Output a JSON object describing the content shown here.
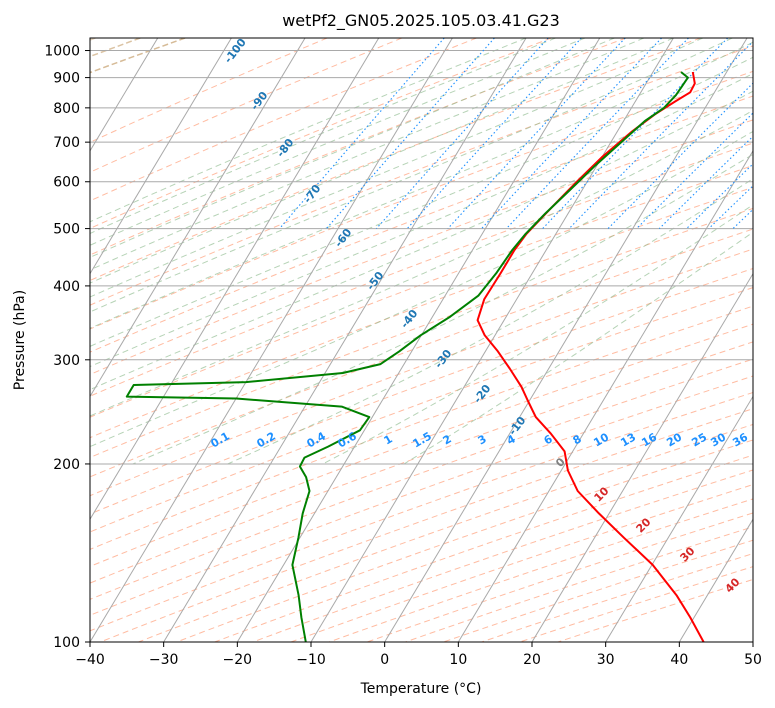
{
  "chart_data": {
    "type": "line",
    "title": "wetPf2_GN05.2025.105.03.41.G23",
    "xlabel": "Temperature (°C)",
    "ylabel": "Pressure (hPa)",
    "xlim": [
      -40,
      50
    ],
    "ylim": [
      1050,
      100
    ],
    "y_scale": "log",
    "grid": true,
    "x_ticks": [
      -40,
      -30,
      -20,
      -10,
      0,
      10,
      20,
      30,
      40,
      50
    ],
    "y_ticks": [
      100,
      200,
      300,
      400,
      500,
      600,
      700,
      800,
      900,
      1000
    ],
    "series": [
      {
        "id": "temperature",
        "color": "#ff0000",
        "points": [
          {
            "p": 920,
            "t": -4.6
          },
          {
            "p": 880,
            "t": -3.4
          },
          {
            "p": 850,
            "t": -3.3
          },
          {
            "p": 820,
            "t": -4.6
          },
          {
            "p": 780,
            "t": -6.3
          },
          {
            "p": 730,
            "t": -8.0
          },
          {
            "p": 660,
            "t": -10.0
          },
          {
            "p": 600,
            "t": -11.4
          },
          {
            "p": 540,
            "t": -12.8
          },
          {
            "p": 490,
            "t": -14.0
          },
          {
            "p": 460,
            "t": -14.3
          },
          {
            "p": 420,
            "t": -14.3
          },
          {
            "p": 380,
            "t": -14.4
          },
          {
            "p": 350,
            "t": -13.6
          },
          {
            "p": 330,
            "t": -11.4
          },
          {
            "p": 310,
            "t": -8.3
          },
          {
            "p": 290,
            "t": -5.3
          },
          {
            "p": 270,
            "t": -2.2
          },
          {
            "p": 255,
            "t": -0.1
          },
          {
            "p": 240,
            "t": 2.2
          },
          {
            "p": 225,
            "t": 5.6
          },
          {
            "p": 210,
            "t": 8.9
          },
          {
            "p": 195,
            "t": 10.9
          },
          {
            "p": 180,
            "t": 13.9
          },
          {
            "p": 165,
            "t": 18.6
          },
          {
            "p": 150,
            "t": 24.0
          },
          {
            "p": 135,
            "t": 30.1
          },
          {
            "p": 120,
            "t": 35.8
          },
          {
            "p": 110,
            "t": 39.5
          },
          {
            "p": 100,
            "t": 43.3
          }
        ]
      },
      {
        "id": "dewpoint",
        "color": "#008000",
        "points": [
          {
            "p": 920,
            "t": -6.2
          },
          {
            "p": 900,
            "t": -4.8
          },
          {
            "p": 870,
            "t": -4.9
          },
          {
            "p": 840,
            "t": -5.0
          },
          {
            "p": 800,
            "t": -5.6
          },
          {
            "p": 760,
            "t": -7.1
          },
          {
            "p": 700,
            "t": -8.6
          },
          {
            "p": 640,
            "t": -10.2
          },
          {
            "p": 580,
            "t": -11.7
          },
          {
            "p": 530,
            "t": -13.1
          },
          {
            "p": 490,
            "t": -14.1
          },
          {
            "p": 460,
            "t": -14.6
          },
          {
            "p": 420,
            "t": -14.9
          },
          {
            "p": 385,
            "t": -15.5
          },
          {
            "p": 355,
            "t": -17.6
          },
          {
            "p": 330,
            "t": -20.1
          },
          {
            "p": 310,
            "t": -21.7
          },
          {
            "p": 295,
            "t": -23.2
          },
          {
            "p": 285,
            "t": -27.6
          },
          {
            "p": 275,
            "t": -40.0
          },
          {
            "p": 272,
            "t": -55.0
          },
          {
            "p": 260,
            "t": -55.0
          },
          {
            "p": 258,
            "t": -40.0
          },
          {
            "p": 250,
            "t": -25.0
          },
          {
            "p": 240,
            "t": -20.4
          },
          {
            "p": 228,
            "t": -20.6
          },
          {
            "p": 214,
            "t": -23.6
          },
          {
            "p": 205,
            "t": -25.9
          },
          {
            "p": 198,
            "t": -25.8
          },
          {
            "p": 190,
            "t": -24.1
          },
          {
            "p": 180,
            "t": -22.5
          },
          {
            "p": 165,
            "t": -21.6
          },
          {
            "p": 150,
            "t": -20.2
          },
          {
            "p": 135,
            "t": -18.8
          },
          {
            "p": 120,
            "t": -15.5
          },
          {
            "p": 110,
            "t": -13.3
          },
          {
            "p": 100,
            "t": -10.7
          }
        ]
      }
    ],
    "dry_adiabats": [
      -60,
      -40,
      -20,
      0,
      20,
      40,
      60,
      80,
      100,
      120,
      140,
      160
    ],
    "moist_adiabats": [
      -30,
      -20,
      -10,
      0,
      10,
      20,
      30
    ],
    "mixing_ratio_labels": [
      "0.1",
      "0.2",
      "0.4",
      "0.6",
      "1",
      "1.5",
      "2",
      "3",
      "4",
      "6",
      "8",
      "10",
      "13",
      "16",
      "20",
      "25",
      "30",
      "36"
    ],
    "blue_isotherm_labels": [
      "-100",
      "-90",
      "-80",
      "-70",
      "-60",
      "-50",
      "-40",
      "-30",
      "-20",
      "-10"
    ],
    "warm_isotherm_labels": [
      "0",
      "10",
      "20",
      "30",
      "40"
    ],
    "colors": {
      "isotherm": "#a9a9a9",
      "isobar": "#a9a9a9",
      "dry_adiabat": "#ffa07a",
      "moist_adiabat": "#8fbc8f",
      "mixing_ratio": "#1e90ff",
      "cold_label": "#1f77b4",
      "mixing_label": "#1e90ff",
      "zero_label": "#808080",
      "warm_label": "#d62728",
      "curved": "#d2b48c"
    }
  }
}
